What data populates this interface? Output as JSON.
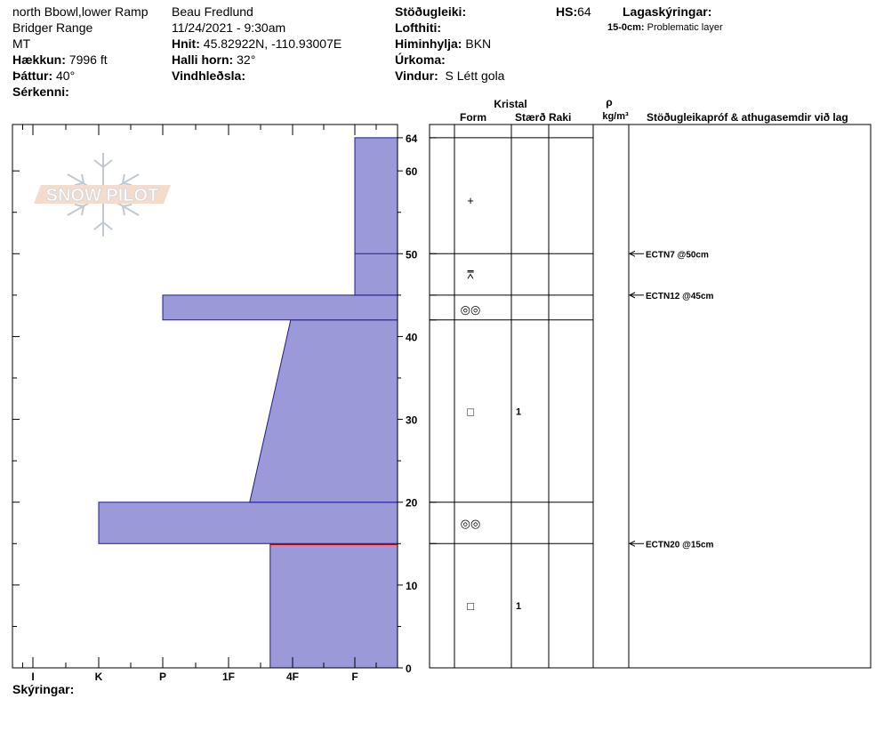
{
  "header": {
    "location": "north Bbowl,lower Ramp",
    "range": "Bridger Range",
    "state": "MT",
    "elevation_label": "Hækkun:",
    "elevation_value": "7996 ft",
    "aspect_label": "Þáttur:",
    "aspect_value": "40°",
    "features_label": "Sérkenni:",
    "observer": "Beau  Fredlund",
    "datetime": "11/24/2021 - 9:30am",
    "coords_label": "Hnit:",
    "coords_value": "45.82922N, -110.93007E",
    "slope_label": "Halli horn:",
    "slope_value": "32°",
    "wind_loading_label": "Vindhleðsla:",
    "stability_label": "Stöðugleiki:",
    "air_temp_label": "Lofthiti:",
    "sky_label": "Himinhylja:",
    "sky_value": "BKN",
    "precip_label": "Úrkoma:",
    "wind_label": "Vindur:",
    "wind_value": "S Létt gola",
    "hs_label": "HS:",
    "hs_value": "64",
    "layer_notes_label": "Lagaskýringar:",
    "layer_note_depth": "15-0cm:",
    "layer_note_text": "Problematic layer",
    "legend_label": "Skýringar:"
  },
  "logo": {
    "text": "SNOW PILOT"
  },
  "columns": {
    "crystal": "Kristal",
    "form": "Form",
    "size": "Stærð",
    "moisture": "Raki",
    "rho": "ρ",
    "density_unit": "kg/m³",
    "stability_notes": "Stöðugleikapróf & athugasemdir við lag"
  },
  "chart_data": {
    "type": "bar",
    "title": "",
    "y_unit": "cm",
    "ylim": [
      0,
      64
    ],
    "y_ticks": [
      0,
      10,
      20,
      30,
      40,
      50,
      60,
      64
    ],
    "y_tick_labels": [
      "0",
      "10",
      "20",
      "30",
      "40",
      "50",
      "60",
      "64"
    ],
    "hardness_scale": [
      "I",
      "K",
      "P",
      "1F",
      "4F",
      "F"
    ],
    "hardness_axis_labels": [
      "I",
      "K",
      "P",
      "1F",
      "4F",
      "F"
    ],
    "hardness_profile": [
      {
        "bottom": 0,
        "top": 15,
        "hardness_bottom": 3.65,
        "hardness_top": 3.65
      },
      {
        "bottom": 15,
        "top": 20,
        "hardness_bottom": 1.0,
        "hardness_top": 1.0
      },
      {
        "bottom": 20,
        "top": 42,
        "hardness_bottom": 3.33,
        "hardness_top": 3.97
      },
      {
        "bottom": 42,
        "top": 45,
        "hardness_bottom": 2.0,
        "hardness_top": 2.0
      },
      {
        "bottom": 45,
        "top": 64,
        "hardness_bottom": 5.0,
        "hardness_top": 5.0
      }
    ],
    "layer_boundaries": [
      15,
      20,
      42,
      45,
      50,
      64
    ],
    "problem_layer_line": 15,
    "grain_forms": [
      {
        "depth": 56.5,
        "symbol": "+",
        "size": ""
      },
      {
        "depth": 47.5,
        "symbol": "⩞",
        "size": ""
      },
      {
        "depth": 43.3,
        "symbol": "◎◎",
        "size": ""
      },
      {
        "depth": 31,
        "symbol": "□",
        "size": "1"
      },
      {
        "depth": 17.5,
        "symbol": "◎◎",
        "size": ""
      },
      {
        "depth": 7.5,
        "symbol": "□",
        "size": "1"
      }
    ],
    "stability_tests": [
      {
        "depth": 50,
        "label": "ECTN7 @50cm"
      },
      {
        "depth": 45,
        "label": "ECTN12 @45cm"
      },
      {
        "depth": 15,
        "label": "ECTN20 @15cm"
      }
    ],
    "colors": {
      "fill": "#9b99d8",
      "stroke": "#1a1a9a",
      "problem_line": "#cc0000"
    }
  }
}
